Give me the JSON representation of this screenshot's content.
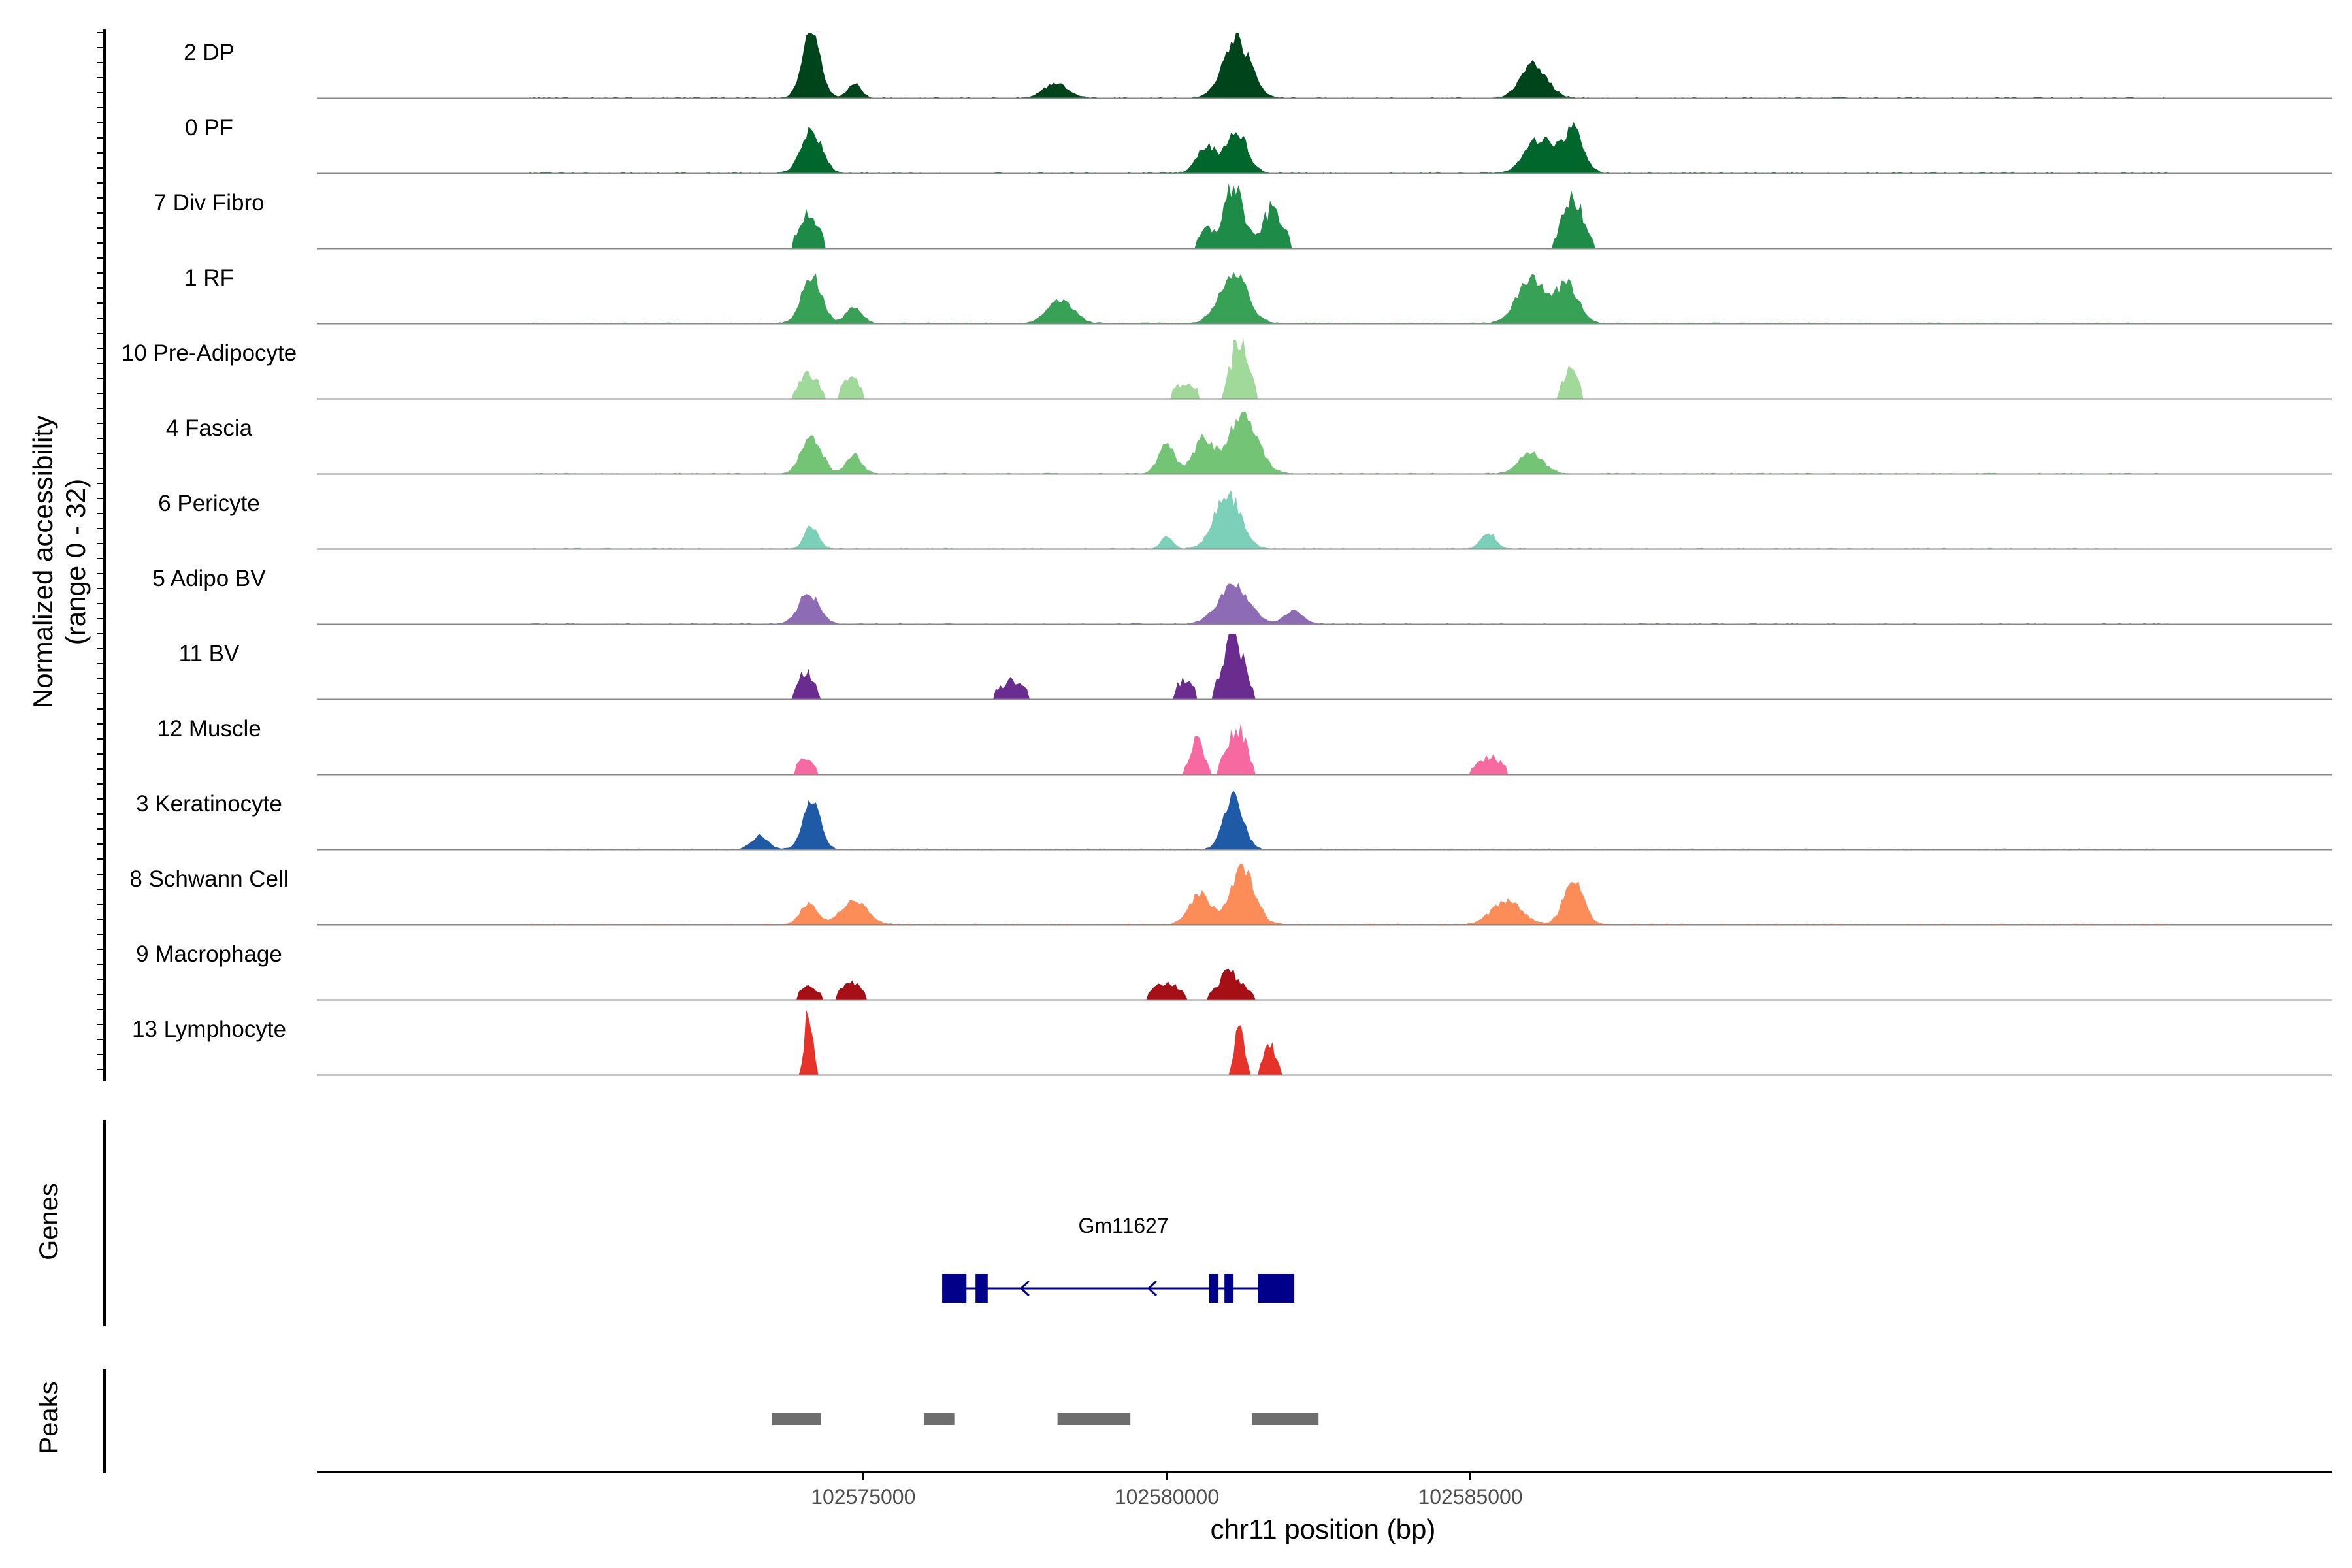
{
  "chart_data": {
    "type": "area",
    "chromosome": "chr11",
    "xlabel": "chr11 position (bp)",
    "ylabel": [
      "Normalized accessibility",
      "(range 0 - 32)"
    ],
    "xlim": [
      102566000,
      102599200
    ],
    "ylim": [
      0,
      32
    ],
    "x_ticks": [
      102575000,
      102580000,
      102585000
    ],
    "x_tick_labels": [
      "102575000",
      "102580000",
      "102585000"
    ],
    "grid": false,
    "legend": "none",
    "tracks": [
      {
        "name": "2 DP",
        "color": "#00441b",
        "sparse": false,
        "scale": 1.0,
        "baseline": true,
        "peaks": [
          [
            102574150,
            1.0,
            210
          ],
          [
            102574850,
            0.22,
            150
          ],
          [
            102581150,
            0.9,
            320
          ],
          [
            102586050,
            0.52,
            300
          ],
          [
            102578170,
            0.22,
            280
          ]
        ]
      },
      {
        "name": "0 PF",
        "color": "#00672c",
        "sparse": false,
        "scale": 0.95,
        "baseline": true,
        "peaks": [
          [
            102574150,
            0.7,
            240
          ],
          [
            102580650,
            0.42,
            220
          ],
          [
            102581150,
            0.66,
            250
          ],
          [
            102586150,
            0.55,
            340
          ],
          [
            102586700,
            0.68,
            230
          ]
        ]
      },
      {
        "name": "7 Div Fibro",
        "color": "#1f8b48",
        "sparse": true,
        "scale": 1.0,
        "baseline": true,
        "peaks": [
          [
            102574100,
            0.55,
            220
          ],
          [
            102581100,
            1.0,
            220
          ],
          [
            102581750,
            0.62,
            230
          ],
          [
            102586700,
            0.78,
            250
          ],
          [
            102580650,
            0.28,
            170
          ]
        ]
      },
      {
        "name": "1 RF",
        "color": "#37a256",
        "sparse": false,
        "scale": 0.95,
        "baseline": true,
        "peaks": [
          [
            102574150,
            0.78,
            230
          ],
          [
            102574850,
            0.28,
            180
          ],
          [
            102581100,
            0.82,
            320
          ],
          [
            102586000,
            0.72,
            330
          ],
          [
            102586600,
            0.62,
            260
          ],
          [
            102578250,
            0.38,
            300
          ]
        ]
      },
      {
        "name": "10 Pre-Adipocyte",
        "color": "#a1d99b",
        "sparse": true,
        "scale": 0.95,
        "baseline": true,
        "peaks": [
          [
            102574100,
            0.4,
            230
          ],
          [
            102574800,
            0.33,
            200
          ],
          [
            102581200,
            1.0,
            200
          ],
          [
            102586650,
            0.52,
            170
          ],
          [
            102580300,
            0.25,
            280
          ]
        ]
      },
      {
        "name": "4 Fascia",
        "color": "#74c476",
        "sparse": false,
        "scale": 0.95,
        "baseline": true,
        "peaks": [
          [
            102574150,
            0.62,
            230
          ],
          [
            102574850,
            0.3,
            180
          ],
          [
            102580600,
            0.55,
            230
          ],
          [
            102581250,
            0.95,
            340
          ],
          [
            102586000,
            0.33,
            280
          ],
          [
            102580000,
            0.48,
            190
          ]
        ]
      },
      {
        "name": "6 Pericyte",
        "color": "#7ccfb8",
        "sparse": false,
        "scale": 0.9,
        "baseline": true,
        "peaks": [
          [
            102574150,
            0.4,
            160
          ],
          [
            102581000,
            0.95,
            300
          ],
          [
            102585300,
            0.28,
            170
          ],
          [
            102580000,
            0.22,
            130
          ]
        ]
      },
      {
        "name": "5 Adipo BV",
        "color": "#8e6bb5",
        "sparse": false,
        "scale": 0.8,
        "baseline": true,
        "peaks": [
          [
            102574100,
            0.58,
            240
          ],
          [
            102581100,
            0.72,
            360
          ],
          [
            102582100,
            0.25,
            220
          ]
        ]
      },
      {
        "name": "11 BV",
        "color": "#6a2d8f",
        "sparse": true,
        "scale": 1.0,
        "baseline": true,
        "peaks": [
          [
            102574050,
            0.4,
            200
          ],
          [
            102581100,
            1.0,
            240
          ],
          [
            102580300,
            0.3,
            200
          ],
          [
            102577450,
            0.28,
            300
          ]
        ]
      },
      {
        "name": "12 Muscle",
        "color": "#f769a1",
        "sparse": true,
        "scale": 0.9,
        "baseline": true,
        "peaks": [
          [
            102574050,
            0.25,
            200
          ],
          [
            102581150,
            0.85,
            220
          ],
          [
            102580500,
            0.55,
            170
          ],
          [
            102585300,
            0.3,
            300
          ]
        ]
      },
      {
        "name": "3 Keratinocyte",
        "color": "#1f5aa6",
        "sparse": false,
        "scale": 0.9,
        "baseline": true,
        "peaks": [
          [
            102574150,
            0.82,
            200
          ],
          [
            102581100,
            0.92,
            220
          ],
          [
            102573300,
            0.22,
            200
          ]
        ]
      },
      {
        "name": "8 Schwann Cell",
        "color": "#fc8d59",
        "sparse": false,
        "scale": 0.95,
        "baseline": true,
        "peaks": [
          [
            102574100,
            0.32,
            200
          ],
          [
            102574850,
            0.4,
            300
          ],
          [
            102580550,
            0.5,
            250
          ],
          [
            102581250,
            0.9,
            280
          ],
          [
            102586700,
            0.72,
            230
          ],
          [
            102585600,
            0.38,
            350
          ]
        ]
      },
      {
        "name": "9 Macrophage",
        "color": "#a50f15",
        "sparse": true,
        "scale": 0.7,
        "baseline": true,
        "peaks": [
          [
            102574100,
            0.32,
            200
          ],
          [
            102574800,
            0.38,
            230
          ],
          [
            102581050,
            0.58,
            300
          ],
          [
            102580000,
            0.38,
            300
          ]
        ]
      },
      {
        "name": "13 Lymphocyte",
        "color": "#e5332a",
        "sparse": true,
        "scale": 1.0,
        "baseline": true,
        "peaks": [
          [
            102574100,
            1.0,
            90
          ],
          [
            102581200,
            0.95,
            100
          ],
          [
            102581700,
            0.45,
            150
          ]
        ]
      }
    ],
    "genes": [
      {
        "name": "Gm11627",
        "strand": "-",
        "start": 102576300,
        "end": 102582100,
        "exons": [
          [
            102576300,
            102576700
          ],
          [
            102576850,
            102577050
          ],
          [
            102580700,
            102580850
          ],
          [
            102580950,
            102581100
          ],
          [
            102581500,
            102582100
          ]
        ]
      }
    ],
    "peak_regions": [
      [
        102573500,
        102574300
      ],
      [
        102576000,
        102576500
      ],
      [
        102578200,
        102579400
      ],
      [
        102581400,
        102582500
      ]
    ]
  },
  "panels": {
    "genes_label": "Genes",
    "peaks_label": "Peaks"
  }
}
